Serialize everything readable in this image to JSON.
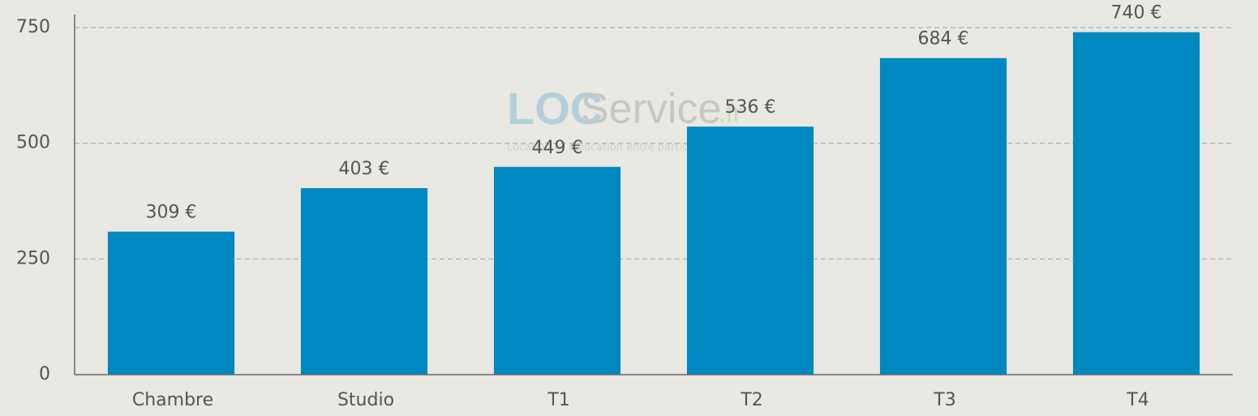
{
  "chart_data": {
    "type": "bar",
    "categories": [
      "Chambre",
      "Studio",
      "T1",
      "T2",
      "T3",
      "T4"
    ],
    "values": [
      309,
      403,
      449,
      536,
      684,
      740
    ],
    "value_labels": [
      "309 €",
      "403 €",
      "449 €",
      "536 €",
      "684 €",
      "740 €"
    ],
    "color": "#0088c0",
    "ylim": [
      0,
      750
    ],
    "yticks": [
      0,
      250,
      500,
      750
    ],
    "grid": true
  },
  "watermark": {
    "logo_loc": "LOC",
    "logo_service": "Service",
    "logo_fr": ".fr",
    "tagline": "Location et colocation entre particuliers"
  }
}
